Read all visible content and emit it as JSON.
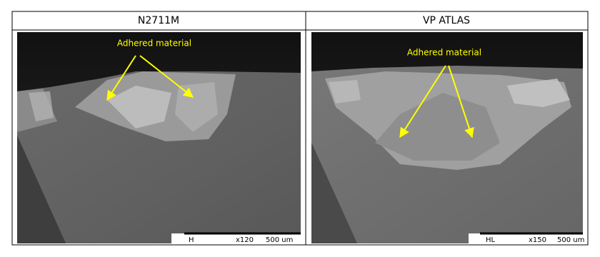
{
  "table": {
    "headers": [
      "N2711M",
      "VP ATLAS"
    ],
    "panels": [
      {
        "annotation": "Adhered material",
        "scale": {
          "detector": "H",
          "magnification": "x120",
          "length": "500 um"
        }
      },
      {
        "annotation": "Adhered material",
        "scale": {
          "detector": "HL",
          "magnification": "x150",
          "length": "500 um"
        }
      }
    ]
  }
}
